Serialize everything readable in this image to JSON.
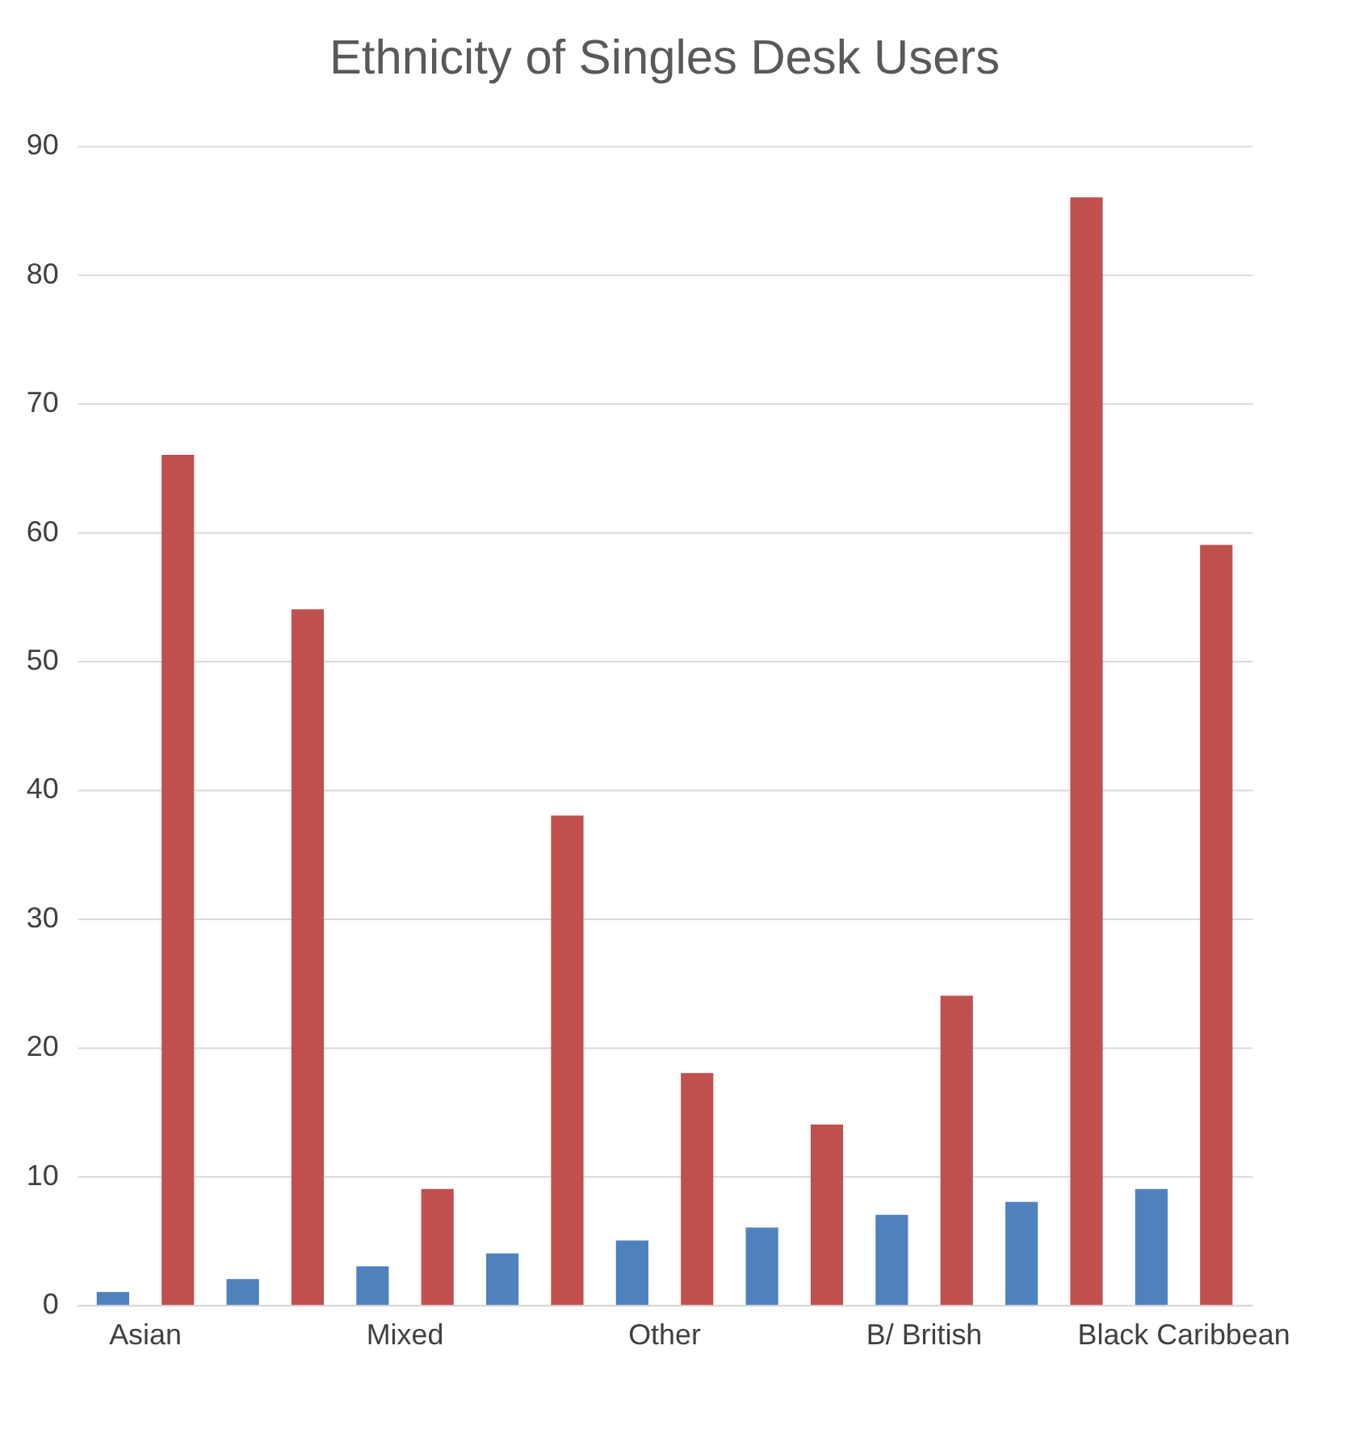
{
  "chart_data": {
    "type": "bar",
    "title": "Ethnicity of Singles Desk Users",
    "categories": [
      "Asian",
      null,
      "Mixed",
      null,
      "Other",
      null,
      "B/ British",
      null,
      "Black Caribbean"
    ],
    "series": [
      {
        "color": "#4f81bd",
        "values": [
          1,
          2,
          3,
          4,
          5,
          6,
          7,
          8,
          9
        ]
      },
      {
        "color": "#c0504d",
        "values": [
          66,
          54,
          9,
          38,
          18,
          14,
          24,
          86,
          59
        ]
      }
    ],
    "ylim": [
      0,
      90
    ],
    "yticks": [
      0,
      10,
      20,
      30,
      40,
      50,
      60,
      70,
      80,
      90
    ],
    "grid": "y",
    "legend": false
  }
}
